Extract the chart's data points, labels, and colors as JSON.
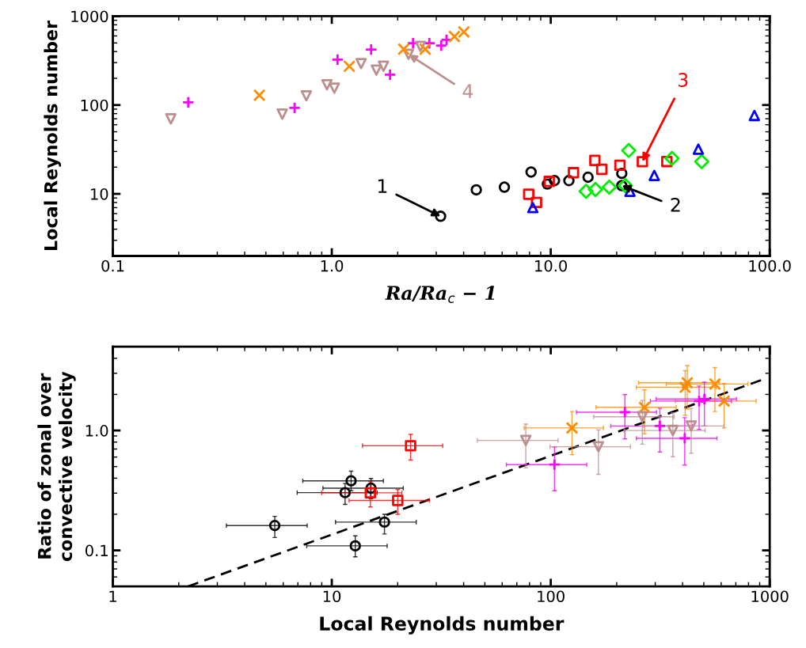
{
  "chart_data": [
    {
      "type": "scatter",
      "xlabel": "Ra/Ra$_{c}$ − 1",
      "ylabel": "Local Reynolds number",
      "log": "xy",
      "grid": false,
      "legend": false,
      "xlim": [
        0.1,
        100
      ],
      "ylim": [
        2,
        1000
      ],
      "xticks": [
        0.1,
        {
          "value": 1,
          "label": "1.0"
        },
        {
          "value": 10,
          "label": "10.0"
        },
        {
          "value": 100,
          "label": "100.0"
        }
      ],
      "yticks": [
        10,
        100,
        1000
      ],
      "series": [
        {
          "color": "#ff00ff",
          "marker": "plus",
          "x": [
            0.221,
            0.676,
            1.062,
            1.512,
            1.845,
            2.35,
            2.79,
            3.16,
            3.34
          ],
          "values": [
            107,
            93,
            324,
            421,
            220,
            496,
            496,
            466,
            541
          ]
        },
        {
          "color": "#bc8f8f",
          "marker": "triangle_down",
          "x": [
            0.184,
            0.594,
            0.765,
            0.95,
            1.027,
            1.361,
            1.598,
            1.722,
            2.24,
            2.54
          ],
          "values": [
            69.8,
            79,
            127,
            169,
            155,
            293,
            247,
            273,
            372,
            457
          ]
        },
        {
          "color": "#ff8c00",
          "marker": "cross",
          "x": [
            0.467,
            1.202,
            2.13,
            2.67,
            3.63,
            4.01
          ],
          "values": [
            129,
            273,
            426,
            426,
            591,
            664
          ]
        },
        {
          "color": "#000000",
          "marker": "circle",
          "x": [
            3.14,
            4.57,
            6.14,
            8.13,
            9.65,
            10.4,
            12.1,
            14.8,
            21.1,
            21.1
          ],
          "values": [
            5.6,
            11.1,
            11.9,
            17.6,
            12.9,
            14.1,
            14.1,
            15.4,
            17.0,
            12.4
          ]
        },
        {
          "color": "#ff0000",
          "marker": "square",
          "x": [
            7.93,
            8.61,
            9.84,
            12.7,
            15.9,
            17.1,
            20.7,
            26.2,
            33.9
          ],
          "values": [
            9.9,
            8.0,
            13.8,
            17.3,
            23.8,
            18.9,
            21.0,
            23.0,
            23.1
          ]
        },
        {
          "color": "#00ee00",
          "marker": "diamond",
          "x": [
            14.5,
            16.0,
            18.5,
            21.9,
            22.7,
            35.8,
            48.9
          ],
          "values": [
            10.7,
            11.2,
            11.9,
            12.4,
            30.8,
            25.1,
            23.1
          ]
        },
        {
          "color": "#0000ff",
          "marker": "triangle",
          "x": [
            8.28,
            23.0,
            29.7,
            47.2,
            85.1
          ],
          "values": [
            7.0,
            10.7,
            16.1,
            31.9,
            76.3
          ]
        }
      ],
      "annotations": [
        {
          "text": "1",
          "x": 3.14,
          "y": 5.6
        },
        {
          "text": "2",
          "x": 21.1,
          "y": 12.4
        },
        {
          "text": "3",
          "x": 26.2,
          "y": 23.0
        },
        {
          "text": "4",
          "x": 2.24,
          "y": 372
        }
      ]
    },
    {
      "type": "scatter",
      "xlabel": "Local Reynolds number",
      "ylabel": "Ratio of zonal over\nconvective velocity",
      "log": "xy",
      "grid": false,
      "legend": false,
      "xlim": [
        1,
        1000
      ],
      "ylim": [
        0.05,
        5
      ],
      "xticks": [
        1,
        10,
        100,
        1000
      ],
      "yticks": [
        0.1,
        {
          "value": 1,
          "label": "1.0"
        }
      ],
      "series": [
        {
          "color": "#000000",
          "marker": "circle",
          "x": [
            5.49,
            12.25,
            11.5,
            15.1,
            17.4,
            12.8
          ],
          "values": [
            0.161,
            0.38,
            0.303,
            0.33,
            0.172,
            0.109
          ],
          "xerrors": [
            [
              3.3,
              7.72
            ],
            [
              7.37,
              17.2
            ],
            [
              6.95,
              16.1
            ],
            [
              9.11,
              21.2
            ],
            [
              10.4,
              24.3
            ],
            [
              7.68,
              17.9
            ]
          ],
          "errors": [
            [
              0.128,
              0.192
            ],
            [
              0.314,
              0.458
            ],
            [
              0.242,
              0.361
            ],
            [
              0.27,
              0.398
            ],
            [
              0.137,
              0.2
            ],
            [
              0.0884,
              0.132
            ]
          ]
        },
        {
          "color": "#ff0000",
          "marker": "square",
          "x": [
            22.9,
            15.0,
            20.0
          ],
          "values": [
            0.746,
            0.302,
            0.261
          ],
          "xerrors": [
            [
              13.8,
              32.1
            ],
            [
              8.99,
              20.9
            ],
            [
              12.0,
              27.9
            ]
          ],
          "errors": [
            [
              0.566,
              0.927
            ],
            [
              0.23,
              0.375
            ],
            [
              0.2,
              0.322
            ]
          ]
        },
        {
          "color": "#ff8c00",
          "marker": "cross",
          "x": [
            125,
            268,
            411,
            420,
            562,
            619
          ],
          "values": [
            1.05,
            1.56,
            2.29,
            2.5,
            2.44,
            1.76
          ],
          "xerrors": [
            [
              75.6,
              174
            ],
            [
              161,
              374
            ],
            [
              246,
              570
            ],
            [
              252,
              589
            ],
            [
              337,
              794
            ],
            [
              371,
              867
            ]
          ],
          "errors": [
            [
              0.629,
              1.44
            ],
            [
              0.936,
              2.18
            ],
            [
              1.34,
              3.15
            ],
            [
              1.51,
              3.48
            ],
            [
              1.44,
              3.35
            ],
            [
              1.05,
              2.47
            ]
          ]
        },
        {
          "color": "#ff00ff",
          "marker": "plus",
          "x": [
            104,
            218,
            315,
            409,
            476,
            503
          ],
          "values": [
            0.519,
            1.42,
            1.09,
            0.86,
            1.76,
            1.83
          ],
          "xerrors": [
            [
              62.7,
              146
            ],
            [
              131,
              304
            ],
            [
              188,
              444
            ],
            [
              246,
              574
            ],
            [
              285,
              669
            ],
            [
              303,
              705
            ]
          ],
          "errors": [
            [
              0.314,
              0.728
            ],
            [
              0.851,
              1.99
            ],
            [
              0.661,
              1.53
            ],
            [
              0.515,
              1.28
            ],
            [
              1.02,
              2.35
            ],
            [
              1.09,
              2.53
            ]
          ]
        },
        {
          "color": "#bc8f8f",
          "marker": "triangle_down",
          "x": [
            76.9,
            165,
            262,
            361,
            438
          ],
          "values": [
            0.826,
            0.732,
            1.3,
            1.0,
            1.09
          ],
          "xerrors": [
            [
              46.2,
              108
            ],
            [
              99.2,
              231
            ],
            [
              157,
              366
            ],
            [
              216,
              507
            ],
            [
              266,
              619
            ]
          ],
          "errors": [
            [
              0.487,
              1.13
            ],
            [
              0.431,
              1.01
            ],
            [
              0.769,
              1.78
            ],
            [
              0.604,
              1.4
            ],
            [
              0.645,
              1.53
            ]
          ]
        },
        {
          "type": "line",
          "color": "#000000",
          "line_style": "dashed",
          "marker": "none",
          "x": [
            2.2,
            940
          ],
          "values": [
            0.05,
            2.68
          ]
        }
      ]
    }
  ]
}
